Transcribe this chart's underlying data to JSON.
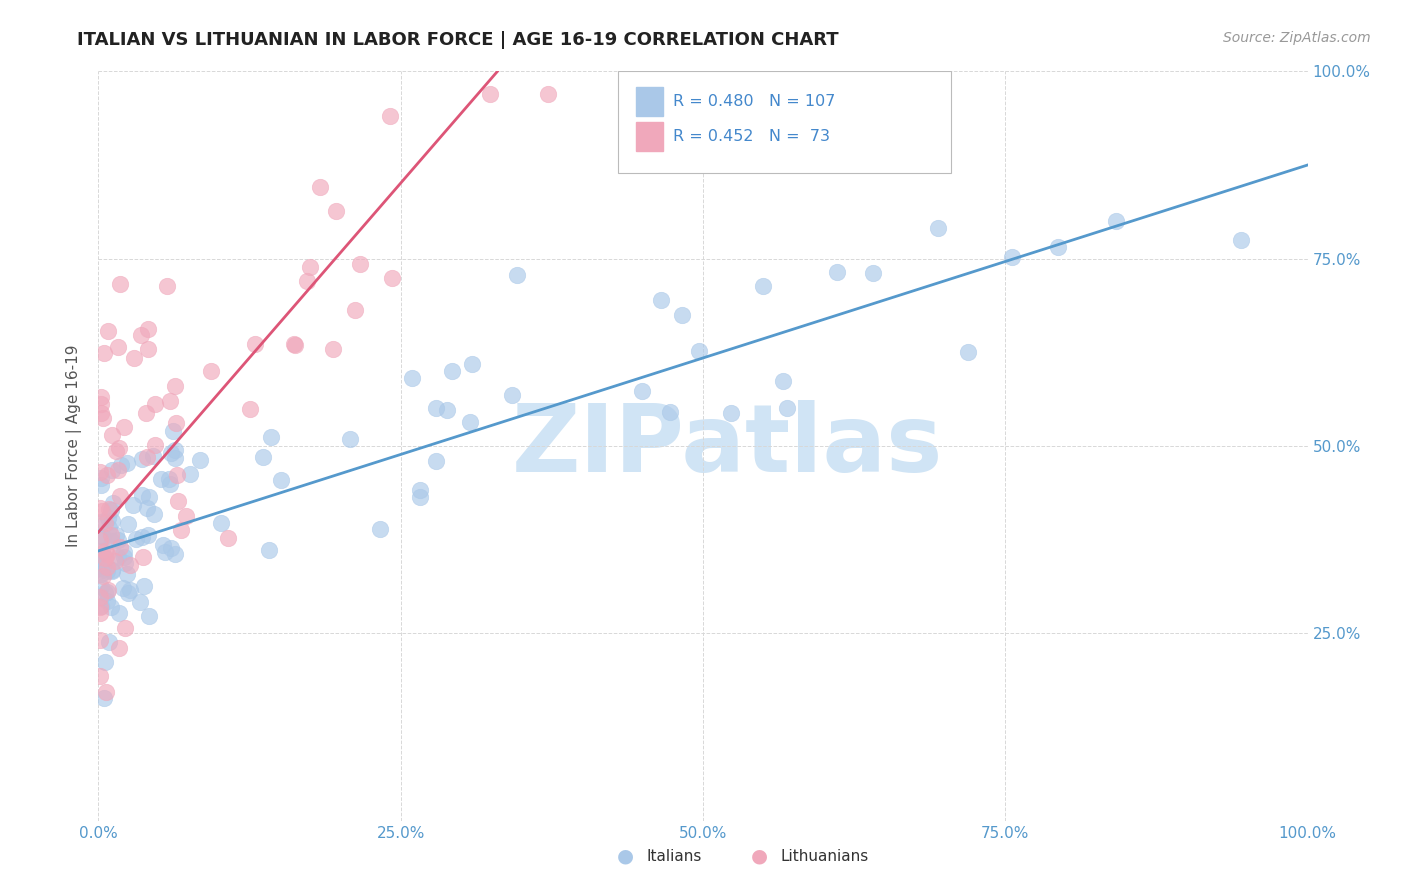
{
  "title": "ITALIAN VS LITHUANIAN IN LABOR FORCE | AGE 16-19 CORRELATION CHART",
  "source": "Source: ZipAtlas.com",
  "ylabel": "In Labor Force | Age 16-19",
  "background_color": "#ffffff",
  "grid_color": "#d8d8d8",
  "watermark": "ZIPatlas",
  "watermark_color": "#d0e4f5",
  "italian_R": 0.48,
  "italian_N": 107,
  "lithuanian_R": 0.452,
  "lithuanian_N": 73,
  "italian_color": "#aac8e8",
  "lithuanian_color": "#f0a8bb",
  "italian_line_color": "#5599cc",
  "lithuanian_line_color": "#dd5577",
  "legend_label_italian": "Italians",
  "legend_label_lithuanian": "Lithuanians",
  "xlim": [
    0.0,
    1.0
  ],
  "ylim": [
    0.0,
    1.0
  ],
  "italian_line_y0": 0.36,
  "italian_line_y1": 0.875,
  "lithuanian_line_x0": 0.0,
  "lithuanian_line_y0": 0.385,
  "lithuanian_line_x1": 0.33,
  "lithuanian_line_y1": 1.0
}
